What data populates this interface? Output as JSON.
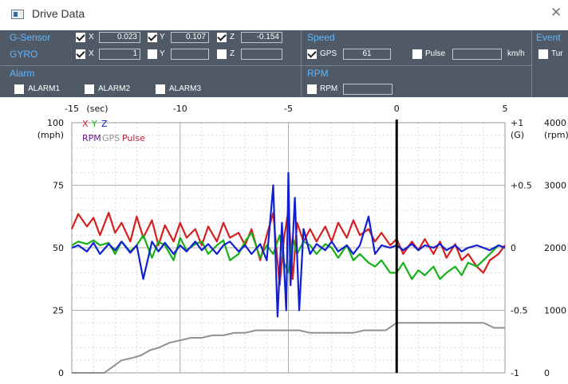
{
  "window": {
    "title": "Drive Data",
    "close_glyph": "✕"
  },
  "gsensor": {
    "header": "G-Sensor",
    "x": {
      "label": "X",
      "checked": true,
      "value": "0.023"
    },
    "y": {
      "label": "Y",
      "checked": true,
      "value": "0.107"
    },
    "z": {
      "label": "Z",
      "checked": true,
      "value": "-0.154"
    }
  },
  "gyro": {
    "header": "GYRO",
    "x": {
      "label": "X",
      "checked": true,
      "value": "1"
    },
    "y": {
      "label": "Y",
      "checked": false,
      "value": ""
    },
    "z": {
      "label": "Z",
      "checked": false,
      "value": ""
    }
  },
  "speed": {
    "header": "Speed",
    "gps": {
      "label": "GPS",
      "checked": true,
      "value": "61"
    },
    "pulse": {
      "label": "Pulse",
      "checked": false,
      "value": ""
    },
    "unit": "km/h"
  },
  "event": {
    "header": "Event",
    "item": "Tur"
  },
  "alarm": {
    "header": "Alarm",
    "items": [
      {
        "label": "ALARM1",
        "checked": false
      },
      {
        "label": "ALARM2",
        "checked": false
      },
      {
        "label": "ALARM3",
        "checked": false
      }
    ]
  },
  "rpm": {
    "header": "RPM",
    "item": {
      "label": "RPM",
      "checked": false,
      "value": ""
    }
  },
  "colors": {
    "panel_bg": "#505a66",
    "header_blue": "#5fb6ff",
    "red": "#d42020",
    "green": "#18b018",
    "blue": "#1020d0",
    "purple": "#6a1a8a",
    "gray": "#909090",
    "pulse": "#b02030"
  },
  "chart_data": {
    "type": "line",
    "x_unit_label": "(sec)",
    "x_ticks": [
      "-15",
      "-10",
      "-5",
      "0",
      "5"
    ],
    "xlim": [
      -15,
      5
    ],
    "current_x": 0,
    "left_axis": {
      "unit": "(mph)",
      "ticks": [
        "100",
        "75",
        "50",
        "25",
        "0"
      ],
      "ylim": [
        0,
        100
      ]
    },
    "right_axis_g": {
      "unit": "(G)",
      "ticks": [
        "+1",
        "+0.5",
        "0",
        "-0.5",
        "-1"
      ],
      "ylim": [
        -1,
        1
      ]
    },
    "right_axis_rpm": {
      "unit": "(rpm)",
      "ticks": [
        "4000",
        "3000",
        "2000",
        "1000",
        "0"
      ],
      "ylim": [
        0,
        4000
      ]
    },
    "legend_row1": [
      {
        "text": "X",
        "color": "#d42020"
      },
      {
        "text": "Y",
        "color": "#18b018"
      },
      {
        "text": "Z",
        "color": "#1020d0"
      }
    ],
    "legend_row2": [
      {
        "text": "RPM",
        "color": "#6a1a8a"
      },
      {
        "text": "GPS",
        "color": "#909090"
      },
      {
        "text": "Pulse",
        "color": "#b02030"
      }
    ],
    "series": [
      {
        "name": "X",
        "axis": "g",
        "color": "#d42020",
        "x": [
          -15,
          -14.7,
          -14.3,
          -14,
          -13.7,
          -13.3,
          -13,
          -12.7,
          -12.3,
          -12,
          -11.7,
          -11.3,
          -11,
          -10.7,
          -10.3,
          -10,
          -9.7,
          -9.3,
          -9,
          -8.7,
          -8.3,
          -8,
          -7.7,
          -7.3,
          -7,
          -6.7,
          -6.3,
          -6,
          -5.7,
          -5.4,
          -5.2,
          -5,
          -4.8,
          -4.6,
          -4.3,
          -4,
          -3.7,
          -3.3,
          -3,
          -2.7,
          -2.3,
          -2,
          -1.7,
          -1.3,
          -1,
          -0.7,
          -0.3,
          0,
          0.3,
          0.7,
          1,
          1.3,
          1.7,
          2,
          2.3,
          2.7,
          3,
          3.3,
          3.7,
          4,
          4.3,
          4.7,
          5
        ],
        "y": [
          0.15,
          0.27,
          0.17,
          0.24,
          0.1,
          0.28,
          0.12,
          0.2,
          0.05,
          0.25,
          0.08,
          0.22,
          0.02,
          0.18,
          0.05,
          0.2,
          0.08,
          0.15,
          0.02,
          0.17,
          0.05,
          0.2,
          0.08,
          0.12,
          0.02,
          0.15,
          -0.1,
          0.1,
          0.28,
          -0.3,
          0.08,
          0.3,
          -0.25,
          0.2,
          0.05,
          0.15,
          0.05,
          0.17,
          0.05,
          0.2,
          0.08,
          0.22,
          0.1,
          0.15,
          0.05,
          0.12,
          0.02,
          0.07,
          -0.05,
          0.05,
          -0.02,
          0.07,
          -0.05,
          0.05,
          -0.08,
          0.03,
          -0.1,
          -0.05,
          -0.15,
          -0.2,
          -0.1,
          -0.05,
          0.02
        ]
      },
      {
        "name": "Y",
        "axis": "g",
        "color": "#18b018",
        "x": [
          -15,
          -14.7,
          -14.3,
          -14,
          -13.7,
          -13.3,
          -13,
          -12.7,
          -12.3,
          -12,
          -11.7,
          -11.3,
          -11,
          -10.7,
          -10.3,
          -10,
          -9.7,
          -9.3,
          -9,
          -8.7,
          -8.3,
          -8,
          -7.7,
          -7.3,
          -7,
          -6.7,
          -6.3,
          -6,
          -5.7,
          -5.4,
          -5.2,
          -5,
          -4.8,
          -4.6,
          -4.3,
          -4,
          -3.7,
          -3.3,
          -3,
          -2.7,
          -2.3,
          -2,
          -1.7,
          -1.3,
          -1,
          -0.7,
          -0.3,
          0,
          0.3,
          0.7,
          1,
          1.3,
          1.7,
          2,
          2.3,
          2.7,
          3,
          3.3,
          3.7,
          4,
          4.3,
          4.7,
          5
        ],
        "y": [
          0.02,
          0.05,
          0.03,
          0.06,
          0.02,
          0.04,
          -0.05,
          0.05,
          -0.03,
          0.02,
          0.1,
          -0.08,
          0.05,
          0.02,
          -0.1,
          0.08,
          -0.02,
          0.03,
          0.05,
          -0.05,
          0.02,
          0.06,
          -0.1,
          -0.05,
          0.05,
          0.12,
          -0.08,
          0.02,
          -0.05,
          0.1,
          -0.12,
          -0.2,
          0.08,
          -0.05,
          0.05,
          0.02,
          -0.05,
          0.03,
          0.0,
          -0.08,
          0.02,
          -0.1,
          -0.05,
          -0.12,
          -0.15,
          -0.1,
          -0.2,
          -0.2,
          -0.12,
          -0.25,
          -0.18,
          -0.22,
          -0.15,
          -0.25,
          -0.2,
          -0.15,
          -0.22,
          -0.12,
          -0.15,
          -0.1,
          -0.05,
          0.02,
          0.0
        ]
      },
      {
        "name": "Z",
        "axis": "g",
        "color": "#1020d0",
        "x": [
          -15,
          -14.7,
          -14.3,
          -14,
          -13.7,
          -13.3,
          -13,
          -12.7,
          -12.3,
          -12,
          -11.7,
          -11.3,
          -11,
          -10.7,
          -10.3,
          -10,
          -9.7,
          -9.3,
          -9,
          -8.7,
          -8.3,
          -8,
          -7.7,
          -7.3,
          -7,
          -6.7,
          -6.3,
          -6,
          -5.7,
          -5.5,
          -5.3,
          -5.1,
          -5,
          -4.9,
          -4.7,
          -4.5,
          -4.3,
          -4,
          -3.7,
          -3.3,
          -3,
          -2.7,
          -2.3,
          -2,
          -1.7,
          -1.3,
          -1,
          -0.7,
          -0.3,
          0,
          0.3,
          0.7,
          1,
          1.3,
          1.7,
          2,
          2.3,
          2.7,
          3,
          3.3,
          3.7,
          4,
          4.3,
          4.7,
          5
        ],
        "y": [
          0.0,
          0.02,
          -0.03,
          0.04,
          -0.05,
          0.03,
          -0.02,
          0.05,
          -0.04,
          0.02,
          -0.25,
          0.05,
          -0.03,
          0.04,
          -0.05,
          0.02,
          -0.03,
          0.05,
          -0.02,
          0.03,
          -0.05,
          0.02,
          0.05,
          -0.03,
          0.02,
          -0.05,
          0.03,
          -0.1,
          0.5,
          -0.55,
          0.2,
          -0.5,
          0.6,
          -0.3,
          0.4,
          -0.5,
          0.15,
          -0.05,
          0.03,
          -0.02,
          0.05,
          -0.03,
          0.02,
          -0.05,
          0.02,
          0.25,
          -0.05,
          0.02,
          0.0,
          0.02,
          -0.02,
          0.03,
          -0.02,
          0.02,
          0.0,
          0.03,
          -0.02,
          0.02,
          -0.03,
          0.0,
          0.02,
          0.0,
          -0.02,
          0.02,
          0.0
        ]
      },
      {
        "name": "GPS",
        "axis": "mph",
        "color": "#909090",
        "x": [
          -15,
          -13.5,
          -12.7,
          -12.2,
          -11.8,
          -11.4,
          -11,
          -10.5,
          -10,
          -9.5,
          -9,
          -8.5,
          -8,
          -7.5,
          -7,
          -6.5,
          -6,
          -5.5,
          -5,
          -4.5,
          -4,
          -3.5,
          -3,
          -2.5,
          -2,
          -1.5,
          -1,
          -0.5,
          0,
          0.5,
          1,
          2,
          3,
          4,
          4.5,
          5
        ],
        "y": [
          0,
          0,
          5,
          6,
          7,
          9,
          10,
          12,
          13,
          14,
          14,
          15,
          15,
          16,
          16,
          17,
          17,
          17,
          17,
          17,
          16,
          16,
          16,
          16,
          16,
          17,
          17,
          17,
          20,
          20,
          20,
          20,
          20,
          20,
          18,
          18
        ]
      }
    ]
  }
}
